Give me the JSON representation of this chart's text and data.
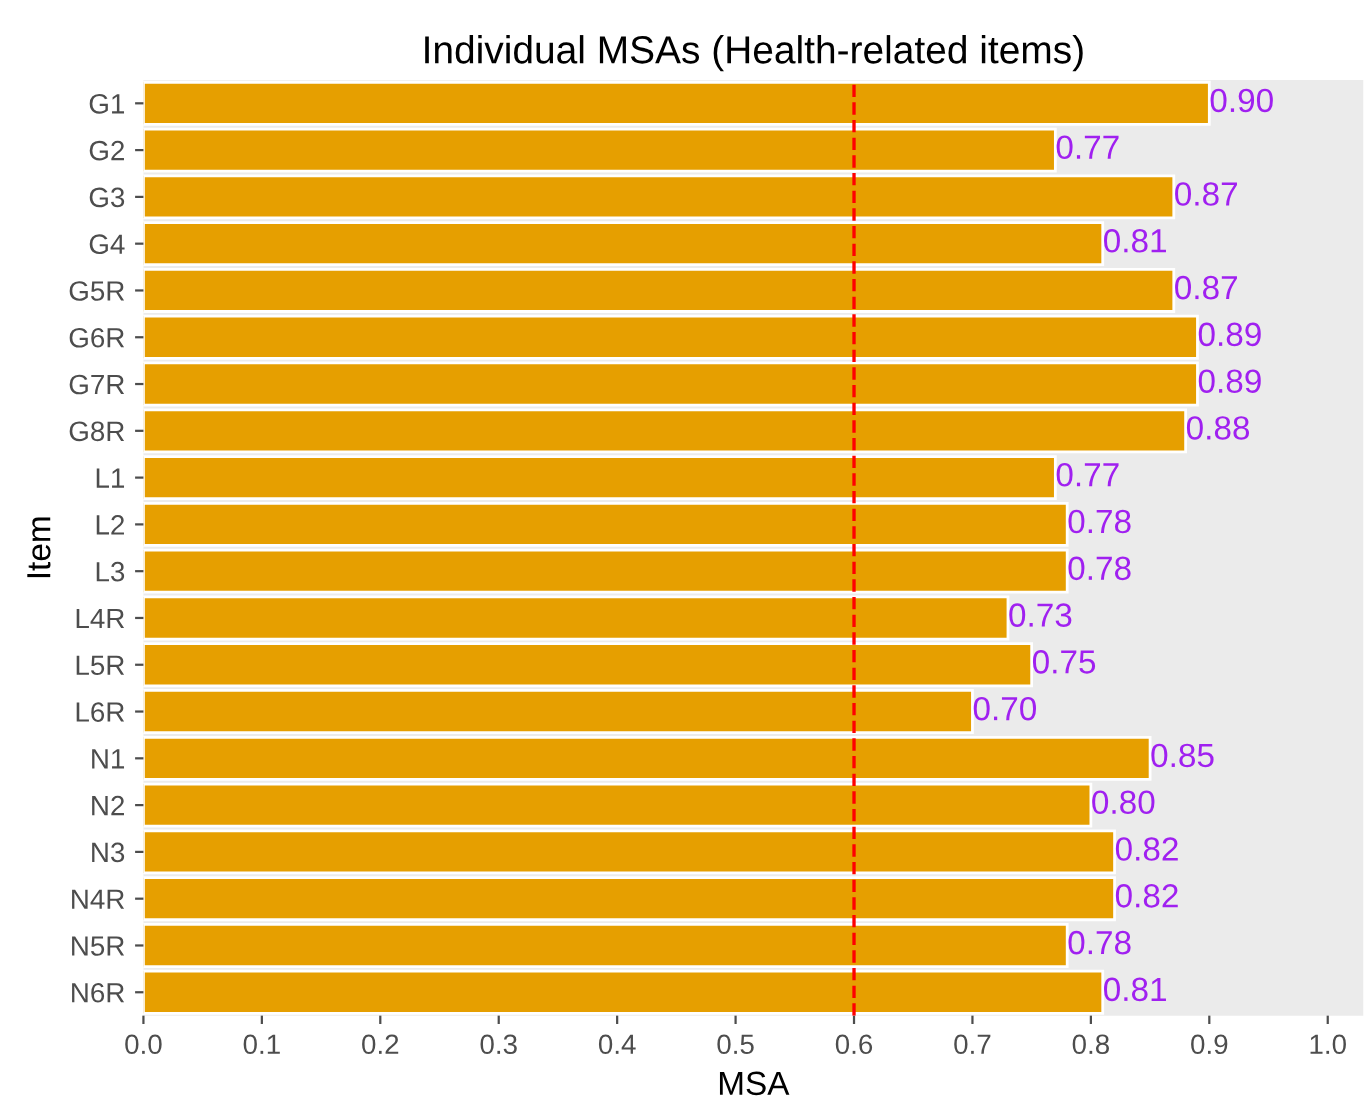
{
  "chart_data": {
    "type": "bar",
    "orientation": "horizontal",
    "title": "Individual MSAs (Health-related items)",
    "xlabel": "MSA",
    "ylabel": "Item",
    "categories": [
      "G1",
      "G2",
      "G3",
      "G4",
      "G5R",
      "G6R",
      "G7R",
      "G8R",
      "L1",
      "L2",
      "L3",
      "L4R",
      "L5R",
      "L6R",
      "N1",
      "N2",
      "N3",
      "N4R",
      "N5R",
      "N6R"
    ],
    "values": [
      0.9,
      0.77,
      0.87,
      0.81,
      0.87,
      0.89,
      0.89,
      0.88,
      0.77,
      0.78,
      0.78,
      0.73,
      0.75,
      0.7,
      0.85,
      0.8,
      0.82,
      0.82,
      0.78,
      0.81
    ],
    "value_labels": [
      "0.90",
      "0.77",
      "0.87",
      "0.81",
      "0.87",
      "0.89",
      "0.89",
      "0.88",
      "0.77",
      "0.78",
      "0.78",
      "0.73",
      "0.75",
      "0.70",
      "0.85",
      "0.80",
      "0.82",
      "0.82",
      "0.78",
      "0.81"
    ],
    "color": "#e69f00",
    "xlim": [
      0,
      1.03
    ],
    "xticks": [
      {
        "value": 0,
        "label": "0.0"
      },
      0.1,
      0.2,
      0.3,
      0.4,
      0.5,
      0.6,
      0.7,
      0.8,
      0.9,
      {
        "value": 1,
        "label": "1.0"
      }
    ],
    "ref_lines": [
      {
        "axis": "x",
        "value": 0.6,
        "color": "#ff0000",
        "line_style": "dashed"
      }
    ],
    "grid": false
  }
}
